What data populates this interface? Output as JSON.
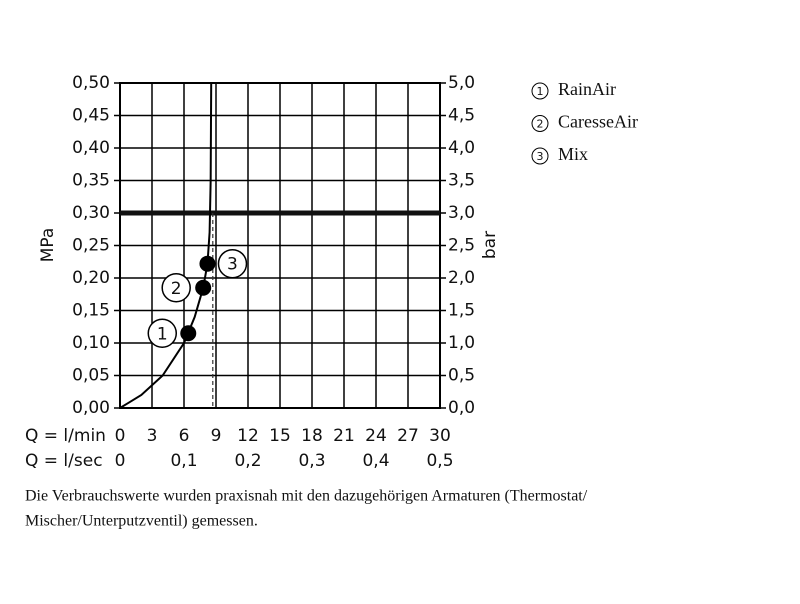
{
  "chart_data": {
    "type": "line",
    "ylabel": "MPa",
    "y2label": "bar",
    "xlabel": "Q = l/min",
    "x2label": "Q = l/sec",
    "xlim": [
      0,
      30
    ],
    "xticks": [
      0,
      3,
      6,
      9,
      12,
      15,
      18,
      21,
      24,
      27,
      30
    ],
    "x2lim": [
      0,
      0.5
    ],
    "x2ticks": [
      0,
      {
        "value": 0.1,
        "label": "0,1"
      },
      {
        "value": 0.2,
        "label": "0,2"
      },
      {
        "value": 0.3,
        "label": "0,3"
      },
      {
        "value": 0.4,
        "label": "0,4"
      },
      {
        "value": 0.5,
        "label": "0,5"
      }
    ],
    "ylim": [
      0,
      0.5
    ],
    "yticks": [
      {
        "value": 0,
        "label": "0,00"
      },
      {
        "value": 0.05,
        "label": "0,05"
      },
      {
        "value": 0.1,
        "label": "0,10"
      },
      {
        "value": 0.15,
        "label": "0,15"
      },
      {
        "value": 0.2,
        "label": "0,20"
      },
      {
        "value": 0.25,
        "label": "0,25"
      },
      {
        "value": 0.3,
        "label": "0,30"
      },
      {
        "value": 0.35,
        "label": "0,35"
      },
      {
        "value": 0.4,
        "label": "0,40"
      },
      {
        "value": 0.45,
        "label": "0,45"
      },
      {
        "value": 0.5,
        "label": "0,50"
      }
    ],
    "y2lim": [
      0,
      5
    ],
    "y2ticks": [
      {
        "value": 0,
        "label": "0,0"
      },
      {
        "value": 0.5,
        "label": "0,5"
      },
      {
        "value": 1,
        "label": "1,0"
      },
      {
        "value": 1.5,
        "label": "1,5"
      },
      {
        "value": 2,
        "label": "2,0"
      },
      {
        "value": 2.5,
        "label": "2,5"
      },
      {
        "value": 3,
        "label": "3,0"
      },
      {
        "value": 3.5,
        "label": "3,5"
      },
      {
        "value": 4,
        "label": "4,0"
      },
      {
        "value": 4.5,
        "label": "4,5"
      },
      {
        "value": 5,
        "label": "5,0"
      }
    ],
    "grid": true,
    "color": "#000000",
    "curve": {
      "x": [
        0,
        2,
        4,
        6,
        7,
        7.8,
        8.2,
        8.4,
        8.5,
        8.55
      ],
      "values": [
        0,
        0.02,
        0.05,
        0.1,
        0.14,
        0.185,
        0.222,
        0.27,
        0.35,
        0.5
      ]
    },
    "hline": 0.3,
    "vline": 8.7,
    "points": [
      {
        "label": "1",
        "name": "RainAir",
        "x": 6.4,
        "y": 0.115
      },
      {
        "label": "2",
        "name": "CaresseAir",
        "x": 7.8,
        "y": 0.185
      },
      {
        "label": "3",
        "name": "Mix",
        "x": 8.2,
        "y": 0.222
      }
    ],
    "footnote": [
      "Die Verbrauchswerte wurden praxisnah mit den dazugehörigen Armaturen (Thermostat/",
      "Mischer/Unterputzventil) gemessen."
    ]
  }
}
